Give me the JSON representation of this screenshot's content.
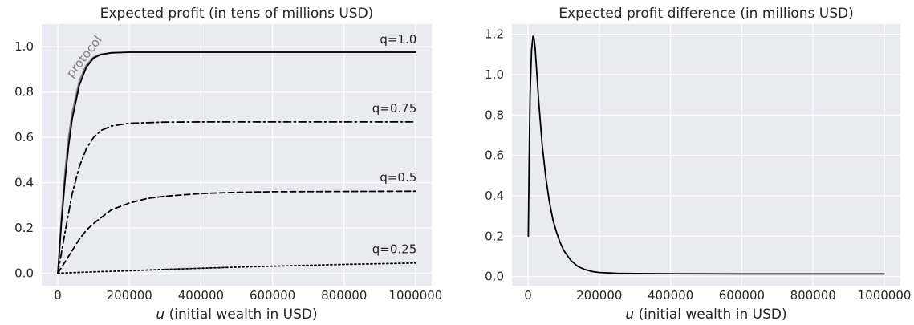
{
  "chart_data": [
    {
      "type": "line",
      "title": "Expected profit (in tens of millions USD)",
      "xlabel_var": "u",
      "xlabel_text": " (initial wealth in USD)",
      "ylabel": "",
      "xlim": [
        -45000,
        1045000
      ],
      "ylim": [
        -0.055,
        1.1
      ],
      "xticks": [
        0,
        200000,
        400000,
        600000,
        800000,
        1000000
      ],
      "xtick_labels": [
        "0",
        "200000",
        "400000",
        "600000",
        "800000",
        "1000000"
      ],
      "yticks": [
        0.0,
        0.2,
        0.4,
        0.6,
        0.8,
        1.0
      ],
      "ytick_labels": [
        "0.0",
        "0.2",
        "0.4",
        "0.6",
        "0.8",
        "1.0"
      ],
      "grid": true,
      "series": [
        {
          "name": "protocol",
          "color": "#808080",
          "dash": "solid",
          "x": [
            0,
            10000,
            20000,
            30000,
            40000,
            60000,
            80000,
            100000,
            120000,
            150000,
            200000,
            300000,
            400000,
            600000,
            800000,
            1000000
          ],
          "y": [
            0.0,
            0.25,
            0.45,
            0.6,
            0.71,
            0.85,
            0.92,
            0.955,
            0.968,
            0.974,
            0.976,
            0.976,
            0.976,
            0.976,
            0.976,
            0.976
          ]
        },
        {
          "name": "q=1.0",
          "color": "#000000",
          "dash": "solid",
          "x": [
            0,
            10000,
            20000,
            30000,
            40000,
            60000,
            80000,
            100000,
            120000,
            150000,
            200000,
            300000,
            400000,
            600000,
            800000,
            1000000
          ],
          "y": [
            0.0,
            0.22,
            0.41,
            0.56,
            0.68,
            0.83,
            0.91,
            0.95,
            0.965,
            0.973,
            0.976,
            0.976,
            0.976,
            0.976,
            0.976,
            0.976
          ]
        },
        {
          "name": "q=0.75",
          "color": "#000000",
          "dash": "dashdot",
          "x": [
            0,
            20000,
            40000,
            60000,
            80000,
            100000,
            120000,
            150000,
            200000,
            300000,
            400000,
            500000,
            600000,
            800000,
            1000000
          ],
          "y": [
            0.0,
            0.18,
            0.35,
            0.47,
            0.55,
            0.6,
            0.63,
            0.65,
            0.662,
            0.667,
            0.668,
            0.668,
            0.668,
            0.668,
            0.668
          ]
        },
        {
          "name": "q=0.5",
          "color": "#000000",
          "dash": "dashed",
          "x": [
            0,
            20000,
            40000,
            60000,
            80000,
            100000,
            150000,
            200000,
            250000,
            300000,
            400000,
            500000,
            600000,
            800000,
            1000000
          ],
          "y": [
            0.0,
            0.05,
            0.1,
            0.15,
            0.19,
            0.22,
            0.28,
            0.31,
            0.33,
            0.34,
            0.352,
            0.357,
            0.36,
            0.361,
            0.362
          ]
        },
        {
          "name": "q=0.25",
          "color": "#000000",
          "dash": "dotted",
          "x": [
            0,
            100000,
            200000,
            300000,
            400000,
            500000,
            600000,
            700000,
            800000,
            900000,
            1000000
          ],
          "y": [
            0.0,
            0.006,
            0.011,
            0.017,
            0.022,
            0.027,
            0.031,
            0.035,
            0.039,
            0.042,
            0.045
          ]
        }
      ]
    },
    {
      "type": "line",
      "title": "Expected profit difference (in millions USD)",
      "xlabel_var": "u",
      "xlabel_text": " (initial wealth in USD)",
      "ylabel": "",
      "xlim": [
        -45000,
        1045000
      ],
      "ylim": [
        -0.045,
        1.25
      ],
      "xticks": [
        0,
        200000,
        400000,
        600000,
        800000,
        1000000
      ],
      "xtick_labels": [
        "0",
        "200000",
        "400000",
        "600000",
        "800000",
        "1000000"
      ],
      "yticks": [
        0.0,
        0.2,
        0.4,
        0.6,
        0.8,
        1.0,
        1.2
      ],
      "ytick_labels": [
        "0.0",
        "0.2",
        "0.4",
        "0.6",
        "0.8",
        "1.0",
        "1.2"
      ],
      "grid": true,
      "series": [
        {
          "color": "#000000",
          "dash": "solid",
          "x": [
            1000,
            3000,
            6000,
            10000,
            14000,
            17000,
            20000,
            25000,
            30000,
            40000,
            50000,
            60000,
            70000,
            80000,
            90000,
            100000,
            120000,
            140000,
            160000,
            180000,
            200000,
            250000,
            300000,
            400000,
            600000,
            800000,
            1000000
          ],
          "y": [
            0.2,
            0.55,
            0.9,
            1.12,
            1.19,
            1.18,
            1.13,
            1.0,
            0.87,
            0.65,
            0.49,
            0.37,
            0.28,
            0.22,
            0.17,
            0.13,
            0.08,
            0.05,
            0.035,
            0.025,
            0.02,
            0.016,
            0.015,
            0.014,
            0.013,
            0.013,
            0.013
          ]
        }
      ]
    }
  ]
}
